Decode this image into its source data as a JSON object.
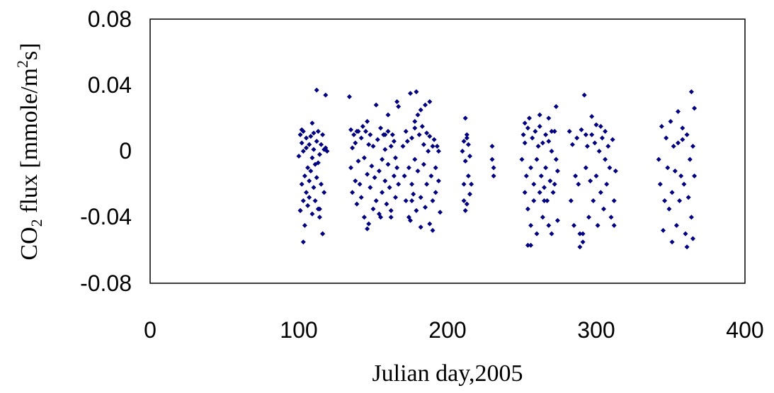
{
  "chart_data": {
    "type": "scatter",
    "title": "",
    "xlabel": "Julian day,2005",
    "ylabel": {
      "parts": [
        "CO",
        "2",
        " flux [mmole/m",
        "2",
        "s]"
      ]
    },
    "xlim": [
      0,
      400
    ],
    "ylim": [
      -0.08,
      0.08
    ],
    "x_ticks": [
      "0",
      "100",
      "200",
      "300",
      "400"
    ],
    "y_ticks": [
      "0.08",
      "0.04",
      "0",
      "-0.04",
      "-0.08"
    ],
    "x_tick_values": [
      0,
      100,
      200,
      300,
      400
    ],
    "y_tick_values": [
      0.08,
      0.04,
      0,
      -0.04,
      -0.08
    ],
    "grid": false,
    "legend": "none",
    "marker_color": "#000080",
    "marker": "diamond",
    "series": [
      {
        "x": [
          100,
          101,
          101,
          102,
          102,
          103,
          103,
          103,
          104,
          104,
          105,
          105,
          105,
          106,
          106,
          107,
          107,
          107,
          108,
          108,
          109,
          109,
          110,
          110,
          110,
          111,
          111,
          112,
          112,
          113,
          113,
          114,
          114,
          115,
          115,
          116,
          116,
          117,
          117,
          118,
          103,
          109,
          112,
          118,
          102,
          114,
          116,
          101,
          113,
          119,
          134,
          135,
          136,
          136,
          137,
          138,
          138,
          139,
          140,
          140,
          141,
          142,
          142,
          143,
          144,
          144,
          145,
          146,
          146,
          147,
          148,
          148,
          149,
          150,
          150,
          151,
          152,
          152,
          153,
          154,
          154,
          155,
          156,
          156,
          157,
          158,
          158,
          159,
          160,
          160,
          161,
          162,
          162,
          163,
          164,
          164,
          165,
          166,
          166,
          167,
          135,
          147,
          155,
          158,
          162,
          167,
          146,
          139,
          160,
          165,
          170,
          171,
          172,
          172,
          173,
          174,
          174,
          175,
          176,
          176,
          177,
          178,
          178,
          179,
          180,
          180,
          181,
          182,
          182,
          183,
          184,
          184,
          185,
          186,
          186,
          187,
          188,
          188,
          189,
          190,
          190,
          191,
          192,
          192,
          193,
          194,
          194,
          195,
          179,
          182,
          185,
          188,
          176,
          190,
          178,
          175,
          210,
          211,
          211,
          212,
          212,
          213,
          213,
          214,
          214,
          215,
          215,
          216,
          212,
          213,
          211,
          230,
          230,
          231,
          231,
          250,
          251,
          252,
          252,
          253,
          254,
          254,
          255,
          256,
          256,
          257,
          258,
          258,
          259,
          260,
          260,
          261,
          262,
          262,
          263,
          264,
          264,
          265,
          266,
          266,
          267,
          268,
          268,
          269,
          270,
          270,
          271,
          272,
          272,
          273,
          274,
          254,
          256,
          262,
          265,
          268,
          270,
          273,
          252,
          274,
          282,
          283,
          284,
          285,
          286,
          287,
          288,
          289,
          290,
          291,
          292,
          293,
          294,
          295,
          296,
          297,
          298,
          299,
          300,
          301,
          302,
          303,
          304,
          305,
          306,
          307,
          308,
          309,
          310,
          311,
          312,
          313,
          289,
          291,
          293,
          297,
          303,
          306,
          300,
          312,
          342,
          343,
          344,
          345,
          346,
          347,
          348,
          349,
          350,
          351,
          352,
          353,
          354,
          355,
          356,
          357,
          358,
          359,
          360,
          361,
          362,
          363,
          364,
          365,
          366,
          355,
          358,
          361,
          364,
          351,
          365,
          366
        ],
        "y": [
          -0.003,
          0.01,
          -0.036,
          0.005,
          -0.02,
          -0.03,
          0.0,
          0.012,
          -0.015,
          -0.045,
          0.002,
          -0.025,
          0.008,
          -0.01,
          -0.033,
          0.004,
          -0.018,
          -0.028,
          0.009,
          -0.012,
          -0.004,
          -0.038,
          0.011,
          -0.022,
          0.001,
          -0.008,
          -0.03,
          0.006,
          -0.016,
          0.012,
          -0.035,
          -0.002,
          -0.04,
          0.004,
          -0.02,
          0.01,
          -0.05,
          0.001,
          -0.025,
          0.002,
          -0.055,
          0.017,
          0.037,
          0.034,
          0.013,
          -0.035,
          -0.05,
          -0.036,
          -0.007,
          0.0,
          0.033,
          -0.01,
          0.002,
          -0.025,
          0.01,
          -0.018,
          0.005,
          -0.032,
          0.012,
          -0.006,
          -0.02,
          0.008,
          -0.028,
          0.015,
          -0.004,
          -0.04,
          0.012,
          -0.014,
          -0.047,
          0.004,
          -0.022,
          0.01,
          -0.009,
          -0.035,
          0.003,
          -0.016,
          0.028,
          -0.03,
          0.007,
          -0.012,
          -0.038,
          0.014,
          -0.005,
          -0.025,
          0.01,
          -0.018,
          0.001,
          -0.032,
          0.012,
          -0.008,
          -0.022,
          0.003,
          -0.04,
          0.01,
          -0.015,
          0.006,
          -0.028,
          0.03,
          -0.01,
          0.027,
          0.013,
          -0.044,
          -0.04,
          0.01,
          -0.036,
          -0.02,
          0.018,
          0.012,
          0.022,
          -0.004,
          0.003,
          -0.015,
          0.012,
          -0.03,
          0.006,
          -0.01,
          -0.04,
          0.035,
          -0.02,
          0.008,
          -0.026,
          0.014,
          -0.005,
          -0.036,
          0.022,
          -0.012,
          0.01,
          -0.028,
          -0.046,
          0.015,
          -0.008,
          0.004,
          -0.034,
          0.011,
          -0.02,
          0.0,
          -0.044,
          0.009,
          -0.015,
          0.003,
          -0.03,
          0.007,
          -0.01,
          -0.025,
          0.003,
          -0.018,
          0.0,
          -0.037,
          0.036,
          0.025,
          0.028,
          0.03,
          -0.03,
          -0.048,
          0.018,
          -0.042,
          0.0,
          0.006,
          -0.02,
          0.02,
          -0.006,
          -0.032,
          0.01,
          -0.015,
          0.004,
          -0.026,
          -0.003,
          -0.02,
          -0.036,
          0.008,
          -0.03,
          0.003,
          -0.005,
          -0.01,
          -0.015,
          -0.005,
          0.01,
          -0.025,
          0.005,
          -0.015,
          0.014,
          -0.035,
          0.02,
          -0.01,
          -0.045,
          0.008,
          -0.02,
          -0.03,
          0.012,
          -0.005,
          -0.05,
          0.003,
          -0.025,
          0.015,
          -0.015,
          -0.04,
          0.005,
          -0.022,
          -0.01,
          0.01,
          -0.03,
          -0.045,
          0.006,
          -0.018,
          -0.05,
          0.0,
          -0.025,
          0.012,
          -0.02,
          -0.005,
          -0.012,
          -0.057,
          -0.057,
          0.022,
          -0.03,
          0.02,
          0.012,
          0.027,
          0.017,
          -0.042,
          0.012,
          -0.03,
          0.004,
          -0.045,
          -0.015,
          0.008,
          -0.02,
          -0.05,
          0.013,
          -0.055,
          0.034,
          -0.01,
          0.003,
          -0.04,
          -0.018,
          0.01,
          -0.03,
          0.005,
          -0.015,
          -0.045,
          0.0,
          -0.025,
          0.008,
          -0.035,
          0.012,
          -0.02,
          0.003,
          -0.01,
          -0.04,
          0.007,
          -0.03,
          -0.012,
          -0.058,
          -0.05,
          0.01,
          0.021,
          0.015,
          -0.005,
          0.016,
          -0.045,
          -0.005,
          -0.02,
          0.015,
          -0.048,
          -0.03,
          0.008,
          -0.01,
          -0.035,
          0.018,
          -0.025,
          0.003,
          -0.012,
          -0.045,
          0.005,
          -0.03,
          -0.015,
          0.007,
          -0.02,
          -0.05,
          0.01,
          -0.028,
          -0.005,
          -0.04,
          0.003,
          -0.015,
          0.024,
          0.014,
          -0.058,
          0.036,
          -0.055,
          -0.053,
          0.026
        ]
      }
    ]
  }
}
